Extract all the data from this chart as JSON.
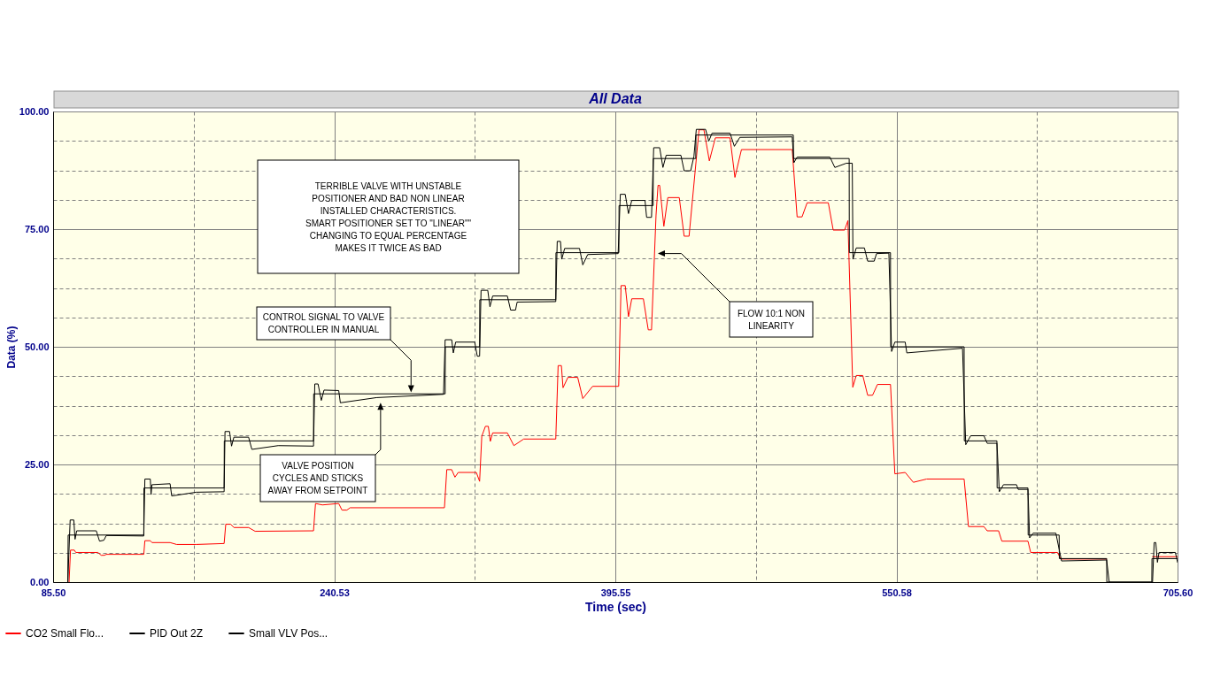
{
  "chart_data": {
    "type": "line",
    "title": "All Data",
    "xlabel": "Time (sec)",
    "ylabel": "Data (%)",
    "xlim": [
      85.5,
      705.6
    ],
    "ylim": [
      0,
      100
    ],
    "xticks": [
      {
        "value": 85.5,
        "label": "85.50"
      },
      {
        "value": 163.0,
        "label": null
      },
      {
        "value": 240.53,
        "label": "240.53"
      },
      {
        "value": 318.0,
        "label": null
      },
      {
        "value": 395.55,
        "label": "395.55"
      },
      {
        "value": 473.1,
        "label": null
      },
      {
        "value": 550.58,
        "label": "550.58"
      },
      {
        "value": 628.1,
        "label": null
      },
      {
        "value": 705.6,
        "label": "705.60"
      }
    ],
    "yticks": [
      {
        "value": 0,
        "label": "0.00"
      },
      {
        "value": 6.25,
        "label": null
      },
      {
        "value": 12.5,
        "label": null
      },
      {
        "value": 18.75,
        "label": null
      },
      {
        "value": 25,
        "label": "25.00"
      },
      {
        "value": 31.25,
        "label": null
      },
      {
        "value": 37.5,
        "label": null
      },
      {
        "value": 43.75,
        "label": null
      },
      {
        "value": 50,
        "label": "50.00"
      },
      {
        "value": 56.25,
        "label": null
      },
      {
        "value": 62.5,
        "label": null
      },
      {
        "value": 68.75,
        "label": null
      },
      {
        "value": 75,
        "label": "75.00"
      },
      {
        "value": 81.25,
        "label": null
      },
      {
        "value": 87.5,
        "label": null
      },
      {
        "value": 93.75,
        "label": null
      },
      {
        "value": 100,
        "label": "100.00"
      }
    ],
    "grid": true,
    "legend": "bottom left",
    "series": [
      {
        "name": "CO2 Small Flo...",
        "color": "#ff0000",
        "x": [
          94.3,
          95.1,
          97.2,
          98.0,
          110.2,
          112.0,
          113.9,
          114.8,
          135.5,
          136.1,
          139.1,
          140.0,
          150.0,
          153.6,
          164.4,
          179.8,
          180.7,
          183.4,
          185.2,
          193.3,
          196.9,
          229.1,
          230.2,
          234.0,
          243.0,
          244.8,
          247.5,
          249.3,
          301.3,
          302.6,
          305.3,
          307.1,
          308.9,
          318.9,
          320.7,
          321.9,
          323.9,
          325.5,
          326.6,
          327.9,
          336.0,
          339.6,
          345.0,
          362.7,
          364.0,
          365.8,
          366.7,
          369.4,
          374.8,
          377.6,
          383.0,
          397.4,
          398.7,
          401.0,
          402.8,
          404.6,
          411.0,
          413.7,
          415.5,
          418.0,
          419.1,
          420.0,
          422.3,
          424.5,
          430.8,
          433.5,
          436.2,
          441.7,
          444.4,
          447.4,
          450.7,
          458.8,
          461.5,
          465.1,
          493.1,
          495.8,
          498.5,
          501.3,
          513.0,
          515.7,
          522.0,
          523.8,
          526.5,
          528.4,
          532.0,
          534.7,
          537.4,
          540.1,
          547.3,
          549.7,
          555.4,
          559.9,
          567.2,
          587.9,
          590.3,
          598.8,
          600.6,
          606.9,
          608.7,
          623.1,
          624.6,
          639.4,
          641.2,
          666.5,
          667.9,
          691.2,
          691.8,
          704.4,
          705.6
        ],
        "values": [
          0,
          6.8,
          6.8,
          6.3,
          6.3,
          5.7,
          5.7,
          5.9,
          5.9,
          8.8,
          8.8,
          8.4,
          8.4,
          8.0,
          8.0,
          8.2,
          12.3,
          12.3,
          11.6,
          11.6,
          10.8,
          10.9,
          16.7,
          16.4,
          16.7,
          15.3,
          15.3,
          15.8,
          15.8,
          23.9,
          23.9,
          22.3,
          23.3,
          23.3,
          21.4,
          31.0,
          33.1,
          33.1,
          29.9,
          31.7,
          31.7,
          29.0,
          30.4,
          30.4,
          46.0,
          46.0,
          41.3,
          43.5,
          43.5,
          39.0,
          41.6,
          41.6,
          63.0,
          63.0,
          56.4,
          60.2,
          60.2,
          53.6,
          53.6,
          78.0,
          84.3,
          84.3,
          75.6,
          81.7,
          81.7,
          73.5,
          73.5,
          96.1,
          96.1,
          89.5,
          94.4,
          94.4,
          86.0,
          91.9,
          91.9,
          77.6,
          77.6,
          80.6,
          80.6,
          74.8,
          74.8,
          76.8,
          41.4,
          43.9,
          43.9,
          39.7,
          39.7,
          42.0,
          42.0,
          23.0,
          23.3,
          21.2,
          21.9,
          21.9,
          11.8,
          11.8,
          10.9,
          10.9,
          8.7,
          8.7,
          6.3,
          6.3,
          4.9,
          4.9,
          null,
          null,
          5.4,
          5.4,
          5.4
        ]
      },
      {
        "name": "PID Out 2Z",
        "color": "#000000",
        "x": [
          93.6,
          93.8,
          135.5,
          135.6,
          179.8,
          179.9,
          229.1,
          229.2,
          301.7,
          301.8,
          320.7,
          320.8,
          362.7,
          362.8,
          397.5,
          397.6,
          416.4,
          416.5,
          439.9,
          440.0,
          493.7,
          493.8,
          524.5,
          524.6,
          547.3,
          547.4,
          587.9,
          588.0,
          606.0,
          606.1,
          623.1,
          623.2,
          640.3,
          640.4,
          666.5,
          666.6,
          691.4,
          691.5,
          705.6
        ],
        "values": [
          0,
          10,
          10,
          20,
          20,
          30,
          30,
          40,
          40,
          50,
          50,
          60,
          60,
          70,
          70,
          80,
          80,
          90,
          90,
          95,
          95,
          90,
          90,
          70,
          70,
          50,
          50,
          30,
          30,
          20,
          20,
          10,
          10,
          5,
          5,
          0,
          0,
          5,
          5
        ]
      },
      {
        "name": "Small VLV Pos...",
        "color": "#000000",
        "x": [
          93.6,
          94.9,
          96.9,
          97.6,
          98.5,
          109.3,
          111.1,
          113.5,
          114.8,
          135.5,
          136.1,
          139.1,
          139.5,
          140.0,
          150.0,
          150.9,
          164.4,
          179.8,
          180.3,
          182.8,
          183.9,
          185.2,
          193.3,
          195.1,
          209.6,
          229.1,
          229.8,
          231.6,
          233.4,
          234.9,
          243.0,
          243.9,
          263.8,
          300.8,
          301.7,
          305.3,
          306.2,
          307.5,
          318.0,
          319.4,
          320.7,
          321.5,
          325.2,
          326.4,
          327.9,
          336.0,
          337.8,
          340.5,
          341.4,
          362.7,
          363.5,
          365.3,
          366.0,
          367.6,
          375.8,
          377.6,
          380.3,
          397.1,
          398.3,
          401.0,
          402.8,
          404.6,
          411.9,
          412.8,
          415.5,
          416.7,
          420.0,
          421.8,
          423.6,
          431.7,
          433.5,
          437.1,
          438.9,
          440.2,
          445.3,
          447.1,
          448.9,
          458.8,
          461.2,
          464.2,
          493.1,
          494.0,
          495.8,
          513.9,
          516.6,
          522.9,
          526.2,
          526.6,
          528.4,
          532.9,
          534.7,
          538.3,
          539.6,
          546.4,
          547.9,
          549.7,
          555.4,
          556.3,
          587.0,
          588.8,
          591.5,
          598.8,
          600.6,
          606.0,
          607.3,
          609.6,
          616.8,
          617.7,
          623.1,
          624.0,
          625.9,
          638.5,
          641.6,
          666.5,
          667.9,
          691.8,
          692.7,
          693.6,
          694.5,
          695.4,
          704.4,
          705.6
        ],
        "values": [
          0,
          13.2,
          13.2,
          9.1,
          10.9,
          10.9,
          8.7,
          8.9,
          9.9,
          9.8,
          21.9,
          21.9,
          18.6,
          20.7,
          20.9,
          18.3,
          19.1,
          19.2,
          32.0,
          32.0,
          28.9,
          30.8,
          30.8,
          28.2,
          29.0,
          28.9,
          42.1,
          42.1,
          38.6,
          40.8,
          40.7,
          38.1,
          39.2,
          39.9,
          51.5,
          51.5,
          48.7,
          51.0,
          51.0,
          48.0,
          48.0,
          62.0,
          62.0,
          58.5,
          60.8,
          60.8,
          57.8,
          57.8,
          59.5,
          59.6,
          72.4,
          72.4,
          68.6,
          70.9,
          70.9,
          67.4,
          69.6,
          69.8,
          82.4,
          82.4,
          78.3,
          81.1,
          81.1,
          77.5,
          77.5,
          92.3,
          92.3,
          88.1,
          90.7,
          90.7,
          87.4,
          87.4,
          90.5,
          96.2,
          96.2,
          93.7,
          95.4,
          95.4,
          92.6,
          94.5,
          94.6,
          89.1,
          90.3,
          90.3,
          88.1,
          89.0,
          89.0,
          68.6,
          71.0,
          71.0,
          68.2,
          68.2,
          69.8,
          69.9,
          49.0,
          51.0,
          51.0,
          48.7,
          49.7,
          29.2,
          31.1,
          31.1,
          29.5,
          29.5,
          19.2,
          20.7,
          20.7,
          19.7,
          19.7,
          9.4,
          10.4,
          10.4,
          4.5,
          4.7,
          0,
          0,
          8.4,
          8.4,
          4.2,
          6.3,
          6.3,
          4.2
        ]
      }
    ],
    "annotations": [
      "TERRIBLE VALVE WITH UNSTABLE\nPOSITIONER AND BAD NON LINEAR\nINSTALLED CHARACTERISTICS.\nSMART POSITIONER SET TO \"LINEAR\"\"\nCHANGING TO EQUAL PERCENTAGE\nMAKES IT TWICE AS BAD",
      {
        "text": "CONTROL SIGNAL TO VALVE\nCONTROLLER IN MANUAL",
        "x": 282.4,
        "y": 40.5
      },
      {
        "text": "VALVE POSITION\nCYCLES AND STICKS\nAWAY FROM SETPOINT",
        "x": 265.6,
        "y": 38.3
      },
      {
        "text": "FLOW 10:1 NON\nLINEARITY",
        "x": 418.5,
        "y": 70.0
      }
    ]
  }
}
